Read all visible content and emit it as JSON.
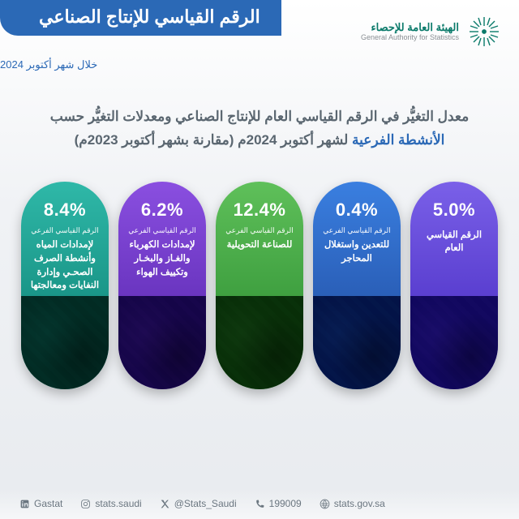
{
  "header": {
    "org_ar": "الهيئة العامة للإحصاء",
    "org_en": "General Authority for Statistics",
    "title": "الرقم القياسي للإنتاج الصناعي",
    "subtitle": "خلال شهر أكتوبر 2024",
    "brand_color": "#0a7a6a",
    "banner_color": "#2b69b6"
  },
  "description": {
    "line1_pre": "معدل التغيُّر في الرقم القياسي العام للإنتاج الصناعي ومعدلات التغيُّر حسب",
    "line2_em": "الأنشطة الفرعية",
    "line2_rest": " لشهر أكتوبر 2024م (مقارنة بشهر أكتوبر 2023م)"
  },
  "pills": [
    {
      "pct": "5.0%",
      "sub": "",
      "label": "الرقم القياسي\nالعام",
      "gradient": [
        "#7a60e8",
        "#5a3fd0"
      ],
      "tint": "#3a2390"
    },
    {
      "pct": "0.4%",
      "sub": "الرقم القياسي الفرعي",
      "label": "للتعدين واستغلال\nالمحاجر",
      "gradient": [
        "#3a7fe0",
        "#2a5fb8"
      ],
      "tint": "#16407a"
    },
    {
      "pct": "12.4%",
      "sub": "الرقم القياسي الفرعي",
      "label": "للصناعة التحويلية",
      "gradient": [
        "#5fc05a",
        "#3fa040"
      ],
      "tint": "#265c26"
    },
    {
      "pct": "6.2%",
      "sub": "الرقم القياسي الفرعي",
      "label": "لإمدادات الكهرباء\nوالغـاز والبخـار\nوتكييف الهواء",
      "gradient": [
        "#8a4fe0",
        "#6a35c0"
      ],
      "tint": "#3e1c78"
    },
    {
      "pct": "8.4%",
      "sub": "الرقم القياسي الفرعي",
      "label": "لإمدادات المياه\nوأنشطة الصرف\nالصحـي وإدارة\nالنفايات ومعالجتها",
      "gradient": [
        "#2fb8a8",
        "#1a9688"
      ],
      "tint": "#0d5a52"
    }
  ],
  "footer": {
    "website": "stats.gov.sa",
    "phone": "199009",
    "x": "@Stats_Saudi",
    "ig": "stats.saudi",
    "li": "Gastat"
  }
}
